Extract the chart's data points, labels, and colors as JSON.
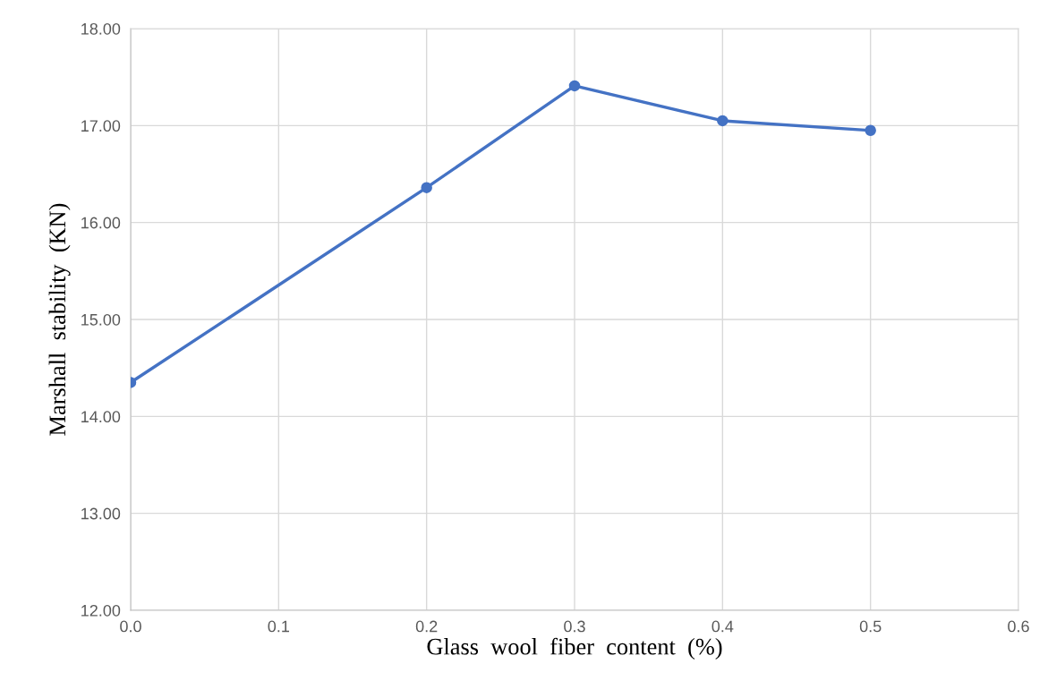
{
  "chart_data": {
    "type": "line",
    "xlabel": "Glass  wool  fiber  content  (%)",
    "ylabel": "Marshall  stability  (KN)",
    "x": [
      0.0,
      0.2,
      0.3,
      0.4,
      0.5
    ],
    "series": [
      {
        "color": "#4472c4",
        "values": [
          14.35,
          16.36,
          17.41,
          17.05,
          16.95
        ]
      }
    ],
    "xlim": [
      0,
      0.6
    ],
    "xticks": [
      {
        "value": 0,
        "label": "0.0"
      },
      0.1,
      0.2,
      0.3,
      0.4,
      0.5,
      0.6
    ],
    "ylim": [
      12,
      18
    ],
    "yticks": [
      {
        "value": 12,
        "label": "12.00"
      },
      {
        "value": 13,
        "label": "13.00"
      },
      {
        "value": 14,
        "label": "14.00"
      },
      {
        "value": 15,
        "label": "15.00"
      },
      {
        "value": 16,
        "label": "16.00"
      },
      {
        "value": 17,
        "label": "17.00"
      },
      {
        "value": 18,
        "label": "18.00"
      }
    ],
    "grid": true,
    "marker": "circle",
    "line_style": "solid"
  }
}
